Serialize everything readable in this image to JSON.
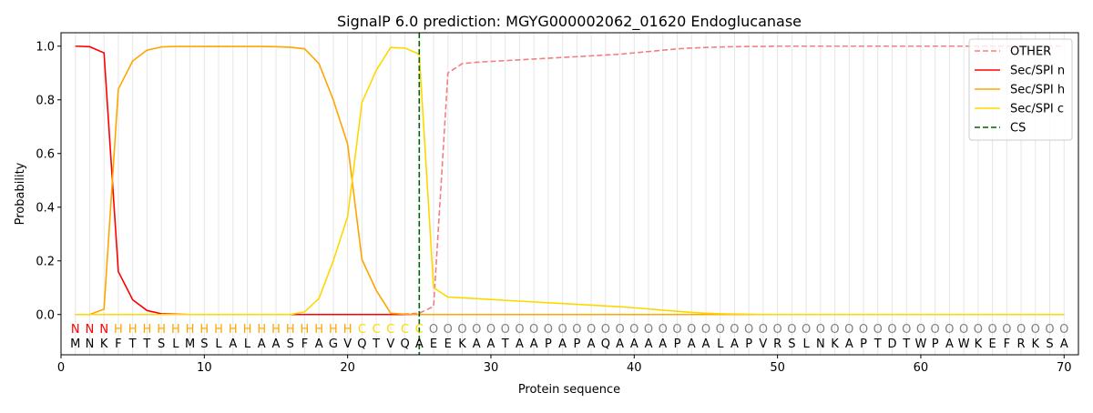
{
  "chart_data": {
    "type": "line",
    "title": "SignalP 6.0 prediction: MGYG000002062_01620 Endoglucanase",
    "xlabel": "Protein sequence",
    "ylabel": "Probability",
    "xlim": [
      0,
      71
    ],
    "ylim": [
      -0.15,
      1.05
    ],
    "x_ticks": [
      0,
      10,
      20,
      30,
      40,
      50,
      60,
      70
    ],
    "y_ticks": [
      0.0,
      0.2,
      0.4,
      0.6,
      0.8,
      1.0
    ],
    "grid": "vertical lines at each residue",
    "legend_position": "top-right",
    "sequence": [
      "M",
      "N",
      "K",
      "F",
      "T",
      "T",
      "S",
      "L",
      "M",
      "S",
      "L",
      "A",
      "L",
      "A",
      "A",
      "S",
      "F",
      "A",
      "G",
      "V",
      "Q",
      "T",
      "V",
      "Q",
      "A",
      "E",
      "E",
      "K",
      "A",
      "A",
      "T",
      "A",
      "A",
      "P",
      "A",
      "P",
      "A",
      "Q",
      "A",
      "A",
      "A",
      "A",
      "P",
      "A",
      "A",
      "L",
      "A",
      "P",
      "V",
      "R",
      "S",
      "L",
      "N",
      "K",
      "A",
      "P",
      "T",
      "D",
      "T",
      "W",
      "P",
      "A",
      "W",
      "K",
      "E",
      "F",
      "R",
      "K",
      "S",
      "A"
    ],
    "labels": [
      "N",
      "N",
      "N",
      "H",
      "H",
      "H",
      "H",
      "H",
      "H",
      "H",
      "H",
      "H",
      "H",
      "H",
      "H",
      "H",
      "H",
      "H",
      "H",
      "H",
      "C",
      "C",
      "C",
      "C",
      "C",
      "O",
      "O",
      "O",
      "O",
      "O",
      "O",
      "O",
      "O",
      "O",
      "O",
      "O",
      "O",
      "O",
      "O",
      "O",
      "O",
      "O",
      "O",
      "O",
      "O",
      "O",
      "O",
      "O",
      "O",
      "O",
      "O",
      "O",
      "O",
      "O",
      "O",
      "O",
      "O",
      "O",
      "O",
      "O",
      "O",
      "O",
      "O",
      "O",
      "O",
      "O",
      "O",
      "O",
      "O",
      "O"
    ],
    "label_colors": {
      "N": "#ff0000",
      "H": "#ffa500",
      "C": "#ffd700",
      "O": "#808080"
    },
    "cleavage_site": 25,
    "series": [
      {
        "name": "OTHER",
        "color": "#f08080",
        "style": "dashed",
        "values": [
          0,
          0,
          0,
          0,
          0,
          0,
          0,
          0,
          0,
          0,
          0,
          0,
          0,
          0,
          0,
          0,
          0,
          0,
          0,
          0,
          0,
          0,
          0,
          0.002,
          0.005,
          0.03,
          0.9,
          0.935,
          0.94,
          0.943,
          0.946,
          0.949,
          0.952,
          0.955,
          0.958,
          0.961,
          0.964,
          0.967,
          0.97,
          0.975,
          0.98,
          0.985,
          0.99,
          0.993,
          0.995,
          0.997,
          0.998,
          0.999,
          0.999,
          1.0,
          1.0,
          1.0,
          1.0,
          1.0,
          1.0,
          1.0,
          1.0,
          1.0,
          1.0,
          1.0,
          1.0,
          1.0,
          1.0,
          1.0,
          1.0,
          1.0,
          1.0,
          1.0,
          1.0,
          1.0
        ]
      },
      {
        "name": "Sec/SPI n",
        "color": "#ff0000",
        "style": "solid",
        "values": [
          1.0,
          0.998,
          0.975,
          0.16,
          0.055,
          0.015,
          0.003,
          0.001,
          0,
          0,
          0,
          0,
          0,
          0,
          0,
          0,
          0,
          0,
          0,
          0,
          0,
          0,
          0,
          0,
          0,
          0,
          0,
          0,
          0,
          0,
          0,
          0,
          0,
          0,
          0,
          0,
          0,
          0,
          0,
          0,
          0,
          0,
          0,
          0,
          0,
          0,
          0,
          0,
          0,
          0,
          0,
          0,
          0,
          0,
          0,
          0,
          0,
          0,
          0,
          0,
          0,
          0,
          0,
          0,
          0,
          0,
          0,
          0,
          0,
          0
        ]
      },
      {
        "name": "Sec/SPI h",
        "color": "#ffa500",
        "style": "solid",
        "values": [
          0,
          0,
          0.02,
          0.84,
          0.945,
          0.985,
          0.997,
          0.999,
          0.999,
          0.999,
          0.999,
          0.999,
          0.999,
          0.999,
          0.998,
          0.996,
          0.99,
          0.935,
          0.8,
          0.635,
          0.205,
          0.09,
          0.005,
          0.001,
          0,
          0,
          0,
          0,
          0,
          0,
          0,
          0,
          0,
          0,
          0,
          0,
          0,
          0,
          0,
          0,
          0,
          0,
          0,
          0,
          0,
          0,
          0,
          0,
          0,
          0,
          0,
          0,
          0,
          0,
          0,
          0,
          0,
          0,
          0,
          0,
          0,
          0,
          0,
          0,
          0,
          0,
          0,
          0,
          0,
          0
        ]
      },
      {
        "name": "Sec/SPI c",
        "color": "#ffd700",
        "style": "solid",
        "values": [
          0,
          0,
          0,
          0,
          0,
          0,
          0,
          0,
          0,
          0,
          0,
          0,
          0,
          0,
          0,
          0,
          0.01,
          0.06,
          0.2,
          0.365,
          0.79,
          0.91,
          0.995,
          0.993,
          0.97,
          0.1,
          0.065,
          0.062,
          0.059,
          0.056,
          0.053,
          0.05,
          0.047,
          0.044,
          0.041,
          0.038,
          0.035,
          0.032,
          0.029,
          0.025,
          0.021,
          0.016,
          0.012,
          0.008,
          0.005,
          0.003,
          0.002,
          0.001,
          0,
          0,
          0,
          0,
          0,
          0,
          0,
          0,
          0,
          0,
          0,
          0,
          0,
          0,
          0,
          0,
          0,
          0,
          0,
          0,
          0,
          0
        ]
      }
    ],
    "legend": [
      {
        "name": "OTHER",
        "color": "#f08080",
        "style": "dashed"
      },
      {
        "name": "Sec/SPI n",
        "color": "#ff0000",
        "style": "solid"
      },
      {
        "name": "Sec/SPI h",
        "color": "#ffa500",
        "style": "solid"
      },
      {
        "name": "Sec/SPI c",
        "color": "#ffd700",
        "style": "solid"
      },
      {
        "name": "CS",
        "color": "#006400",
        "style": "dashed"
      }
    ]
  }
}
